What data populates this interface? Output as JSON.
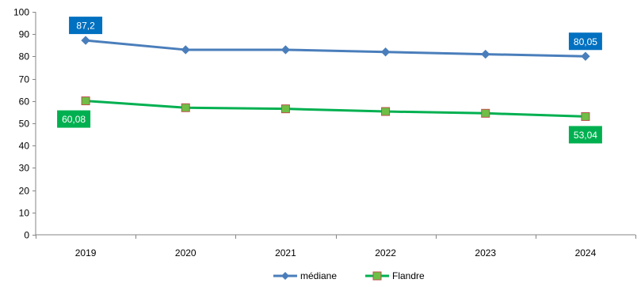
{
  "chart_data": {
    "type": "line",
    "title": "",
    "xlabel": "",
    "ylabel": "",
    "categories": [
      "2019",
      "2020",
      "2021",
      "2022",
      "2023",
      "2024"
    ],
    "ylim": [
      0,
      100
    ],
    "yticks": [
      0,
      10,
      20,
      30,
      40,
      50,
      60,
      70,
      80,
      90,
      100
    ],
    "grid": false,
    "legend_position": "bottom",
    "series": [
      {
        "name": "médiane",
        "color": "#4A7EBB",
        "marker": "diamond",
        "values": [
          87.2,
          83.0,
          83.0,
          82.0,
          81.0,
          80.05
        ],
        "data_labels": [
          {
            "index": 0,
            "text": "87,2",
            "position": "above"
          },
          {
            "index": 5,
            "text": "80,05",
            "position": "above"
          }
        ],
        "label_bg": "#0070C0"
      },
      {
        "name": "Flandre",
        "color": "#00B050",
        "marker_fill": "#6DBF45",
        "marker_edge": "#C0504D",
        "marker": "square",
        "values": [
          60.08,
          57.0,
          56.5,
          55.3,
          54.5,
          53.04
        ],
        "data_labels": [
          {
            "index": 0,
            "text": "60,08",
            "position": "below-left"
          },
          {
            "index": 5,
            "text": "53,04",
            "position": "below"
          }
        ],
        "label_bg": "#00B050"
      }
    ]
  }
}
